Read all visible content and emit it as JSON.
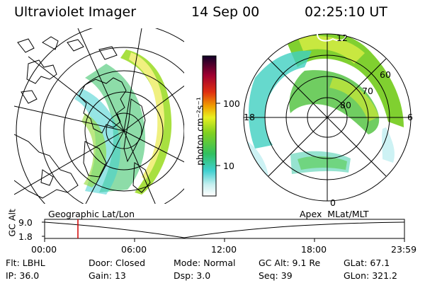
{
  "header": {
    "instrument": "Ultraviolet Imager",
    "date": "14 Sep 00",
    "time": "02:25:10 UT"
  },
  "colorbar": {
    "unit_label": "photon cm⁻²s⁻¹",
    "ticks": [
      "100",
      "10"
    ]
  },
  "geo_panel": {
    "label": "Geographic Lat/Lon"
  },
  "apex_panel": {
    "label": "Apex  MLat/MLT",
    "mlt_labels": [
      "12",
      "18",
      "6",
      "0"
    ],
    "mlat_labels": [
      "60",
      "70",
      "80"
    ]
  },
  "altitude_plot": {
    "ylabel": "GC Alt",
    "ytick_top": "9.0",
    "ytick_bottom": "1.8",
    "time_ticks": [
      "00:00",
      "06:00",
      "12:00",
      "18:00",
      "23:59"
    ],
    "marker_color": "#d00000"
  },
  "status": {
    "row1": [
      {
        "key": "Flt:",
        "value": "LBHL"
      },
      {
        "key": "Door:",
        "value": "Closed"
      },
      {
        "key": "Mode:",
        "value": "Normal"
      },
      {
        "key": "GC Alt:",
        "value": "9.1 Re"
      },
      {
        "key": "GLat:",
        "value": "67.1"
      }
    ],
    "row2": [
      {
        "key": "IP:",
        "value": "36.0"
      },
      {
        "key": "Gain:",
        "value": "13"
      },
      {
        "key": "Dsp:",
        "value": "3.0"
      },
      {
        "key": "Seq:",
        "value": "39"
      },
      {
        "key": "GLon:",
        "value": "321.2"
      }
    ]
  }
}
